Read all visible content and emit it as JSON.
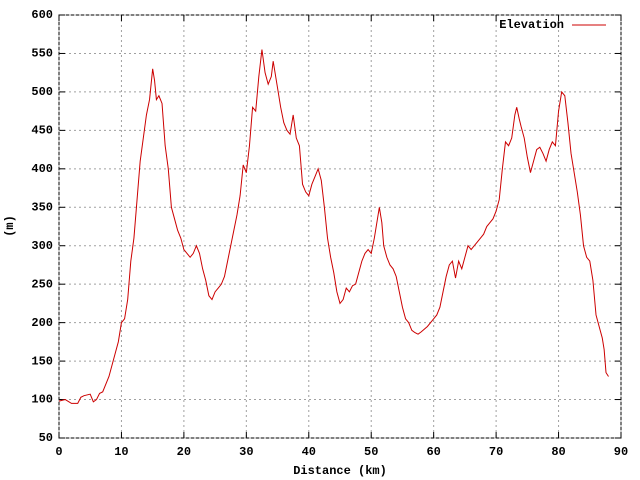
{
  "chart_data": {
    "type": "line",
    "xlabel": "Distance (km)",
    "ylabel": "(m)",
    "xlim": [
      0,
      90
    ],
    "ylim": [
      50,
      600
    ],
    "xticks": [
      0,
      10,
      20,
      30,
      40,
      50,
      60,
      70,
      80,
      90
    ],
    "yticks": [
      50,
      100,
      150,
      200,
      250,
      300,
      350,
      400,
      450,
      500,
      550,
      600
    ],
    "grid": true,
    "legend": "top-right",
    "x": [
      0,
      1,
      2,
      3,
      3.5,
      4,
      5,
      5.5,
      6,
      6.5,
      7,
      8,
      9,
      9.5,
      10,
      10.5,
      11,
      11.5,
      12,
      12.5,
      13,
      13.5,
      14,
      14.5,
      15,
      15.3,
      15.6,
      16,
      16.5,
      17,
      17.5,
      18,
      18.5,
      19,
      19.5,
      20,
      20.5,
      21,
      21.5,
      22,
      22.5,
      23,
      23.5,
      24,
      24.5,
      25,
      25.5,
      26,
      26.5,
      27,
      27.5,
      28,
      28.5,
      29,
      29.5,
      30,
      30.5,
      31,
      31.5,
      32,
      32.5,
      33,
      33.5,
      34,
      34.3,
      35,
      35.5,
      36,
      36.5,
      37,
      37.5,
      38,
      38.5,
      39,
      39.5,
      40,
      40.5,
      41,
      41.5,
      42,
      42.5,
      43,
      43.5,
      44,
      44.5,
      45,
      45.5,
      46,
      46.5,
      47,
      47.5,
      48,
      48.5,
      49,
      49.5,
      50,
      50.5,
      51,
      51.3,
      51.7,
      52,
      52.5,
      53,
      53.5,
      54,
      54.5,
      55,
      55.5,
      56,
      56.5,
      57,
      57.5,
      58,
      59,
      60,
      60.5,
      61,
      61.5,
      62,
      62.5,
      63,
      63.5,
      64,
      64.5,
      65,
      65.5,
      66,
      66.5,
      67,
      67.5,
      68,
      68.5,
      69,
      69.5,
      70,
      70.5,
      71,
      71.5,
      72,
      72.5,
      73,
      73.3,
      73.7,
      74,
      74.5,
      75,
      75.5,
      76,
      76.5,
      77,
      77.5,
      78,
      78.5,
      79,
      79.5,
      80,
      80.5,
      81,
      81.5,
      82,
      82.5,
      83,
      83.5,
      84,
      84.5,
      85,
      85.5,
      86,
      86.5,
      87,
      87.3,
      87.6,
      88
    ],
    "series": [
      {
        "name": "Elevation",
        "color": "#cc0000",
        "values": [
          98,
          100,
          95,
          95,
          103,
          105,
          107,
          97,
          100,
          108,
          110,
          130,
          160,
          175,
          200,
          205,
          230,
          280,
          310,
          360,
          410,
          440,
          470,
          490,
          530,
          515,
          490,
          495,
          485,
          430,
          400,
          350,
          335,
          320,
          310,
          295,
          290,
          285,
          290,
          300,
          290,
          270,
          255,
          235,
          230,
          240,
          245,
          250,
          260,
          280,
          300,
          320,
          340,
          365,
          405,
          395,
          430,
          480,
          475,
          520,
          555,
          525,
          510,
          520,
          540,
          505,
          480,
          460,
          450,
          445,
          470,
          440,
          430,
          380,
          370,
          365,
          380,
          390,
          400,
          385,
          350,
          310,
          285,
          265,
          240,
          225,
          230,
          245,
          240,
          248,
          250,
          265,
          280,
          290,
          295,
          290,
          310,
          335,
          350,
          330,
          300,
          285,
          275,
          270,
          260,
          240,
          220,
          205,
          200,
          190,
          187,
          185,
          188,
          195,
          205,
          210,
          220,
          240,
          260,
          275,
          280,
          258,
          280,
          270,
          285,
          300,
          295,
          300,
          305,
          310,
          315,
          325,
          330,
          335,
          345,
          360,
          400,
          435,
          430,
          440,
          470,
          480,
          465,
          455,
          440,
          415,
          395,
          410,
          425,
          428,
          420,
          410,
          425,
          435,
          430,
          475,
          500,
          495,
          460,
          420,
          395,
          370,
          340,
          300,
          285,
          280,
          255,
          210,
          195,
          180,
          165,
          135,
          130
        ]
      }
    ]
  }
}
